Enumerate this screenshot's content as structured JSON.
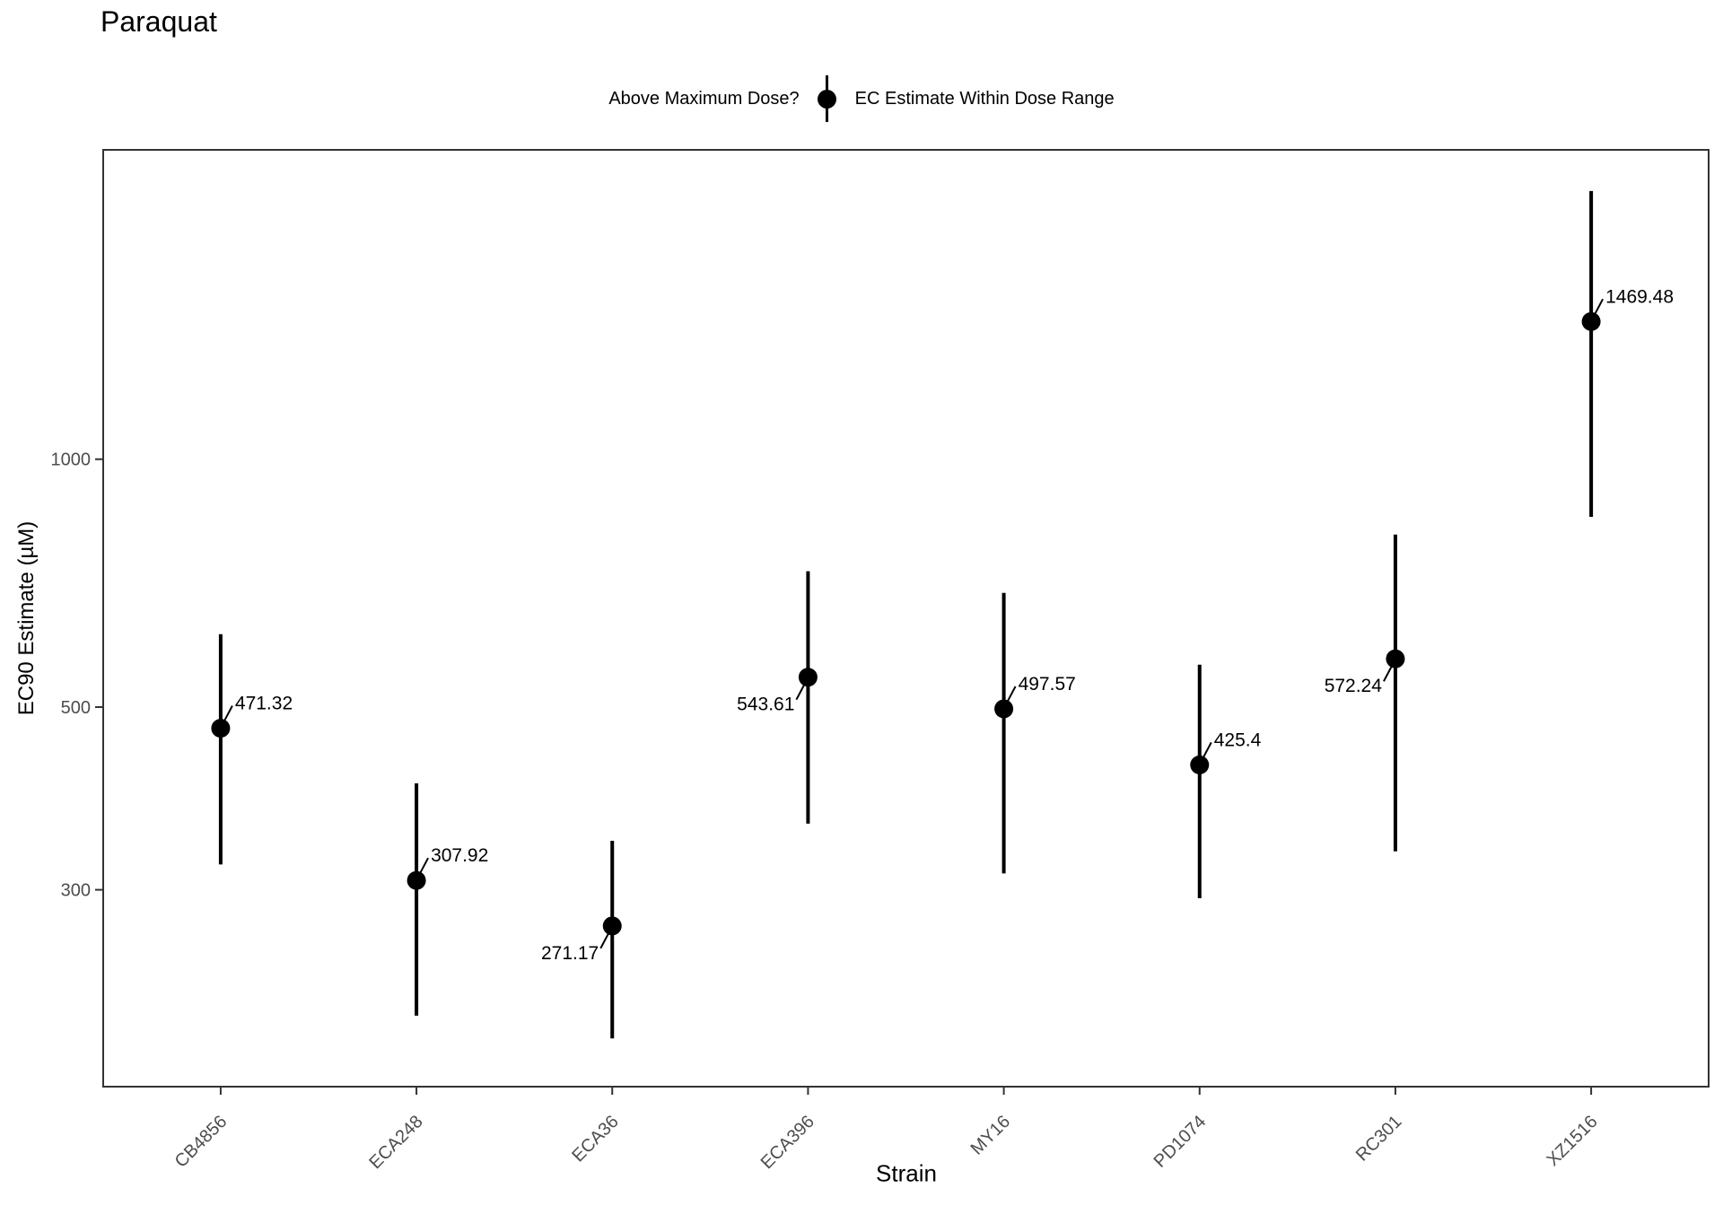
{
  "title": "Paraquat",
  "legend": {
    "position": "top",
    "title": "Above Maximum Dose?",
    "items": [
      {
        "glyph": "pointrange-icon",
        "label": "EC Estimate Within Dose Range"
      }
    ]
  },
  "chart_data": {
    "type": "scatter",
    "subtype": "pointrange",
    "title": "Paraquat",
    "xlabel": "Strain",
    "ylabel": "EC90 Estimate (µM)",
    "y_scale": "log10",
    "y_ticks": [
      "300",
      "500",
      "1000"
    ],
    "y_domain": [
      173,
      2375
    ],
    "grid": "off",
    "legend_position": "top",
    "categories": [
      "CB4856",
      "ECA248",
      "ECA36",
      "ECA396",
      "MY16",
      "PD1074",
      "RC301",
      "XZ1516"
    ],
    "series": [
      {
        "name": "EC Estimate Within Dose Range",
        "points": [
          {
            "strain": "CB4856",
            "estimate": 471.32,
            "label": "471.32",
            "lower": 322,
            "upper": 613,
            "label_side": "tr"
          },
          {
            "strain": "ECA248",
            "estimate": 307.92,
            "label": "307.92",
            "lower": 211,
            "upper": 404,
            "label_side": "tr"
          },
          {
            "strain": "ECA36",
            "estimate": 271.17,
            "label": "271.17",
            "lower": 198,
            "upper": 344,
            "label_side": "bl"
          },
          {
            "strain": "ECA396",
            "estimate": 543.61,
            "label": "543.61",
            "lower": 361,
            "upper": 731,
            "label_side": "bl"
          },
          {
            "strain": "MY16",
            "estimate": 497.57,
            "label": "497.57",
            "lower": 314,
            "upper": 688,
            "label_side": "tr"
          },
          {
            "strain": "PD1074",
            "estimate": 425.4,
            "label": "425.4",
            "lower": 293,
            "upper": 563,
            "label_side": "tr"
          },
          {
            "strain": "RC301",
            "estimate": 572.24,
            "label": "572.24",
            "lower": 334,
            "upper": 810,
            "label_side": "bl"
          },
          {
            "strain": "XZ1516",
            "estimate": 1469.48,
            "label": "1469.48",
            "lower": 851,
            "upper": 2117,
            "label_side": "tr"
          }
        ]
      }
    ],
    "colors": {
      "point": "#000000",
      "range_line": "#000000",
      "label_text": "#000000",
      "axis_text": "#4D4D4D",
      "panel_border": "#333333",
      "background": "#FFFFFF"
    }
  }
}
